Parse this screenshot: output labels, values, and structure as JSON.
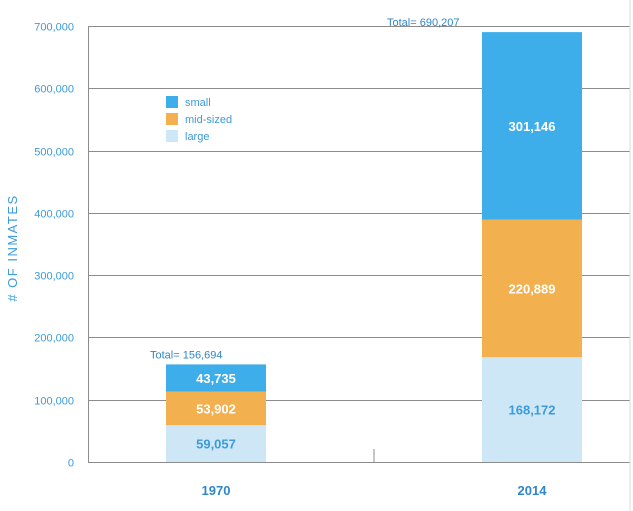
{
  "chart_data": {
    "type": "bar",
    "stacked": true,
    "categories": [
      "1970",
      "2014"
    ],
    "series": [
      {
        "name": "large",
        "values": [
          59057,
          168172
        ],
        "labels": [
          "59,057",
          "168,172"
        ],
        "color": "#cde7f7",
        "label_color": "#3d9bd9"
      },
      {
        "name": "mid-sized",
        "values": [
          53902,
          220889
        ],
        "labels": [
          "53,902",
          "220,889"
        ],
        "color": "#f2b04e",
        "label_color": "#ffffff"
      },
      {
        "name": "small",
        "values": [
          43735,
          301146
        ],
        "labels": [
          "43,735",
          "301,146"
        ],
        "color": "#3daeea",
        "label_color": "#ffffff"
      }
    ],
    "totals": [
      "Total=  156,694",
      "Total= 690,207"
    ],
    "ylabel": "# OF INMATES",
    "xlabel": "",
    "ylim": [
      0,
      700000
    ],
    "yticks": [
      0,
      100000,
      200000,
      300000,
      400000,
      500000,
      600000,
      700000
    ],
    "ytick_labels": [
      "0",
      "100,000",
      "200,000",
      "300,000",
      "400,000",
      "500,000",
      "600,000",
      "700,000"
    ],
    "legend": {
      "position": "top-left",
      "order": [
        "small",
        "mid-sized",
        "large"
      ]
    },
    "grid": true,
    "grid_color": "#8c8c8c"
  }
}
